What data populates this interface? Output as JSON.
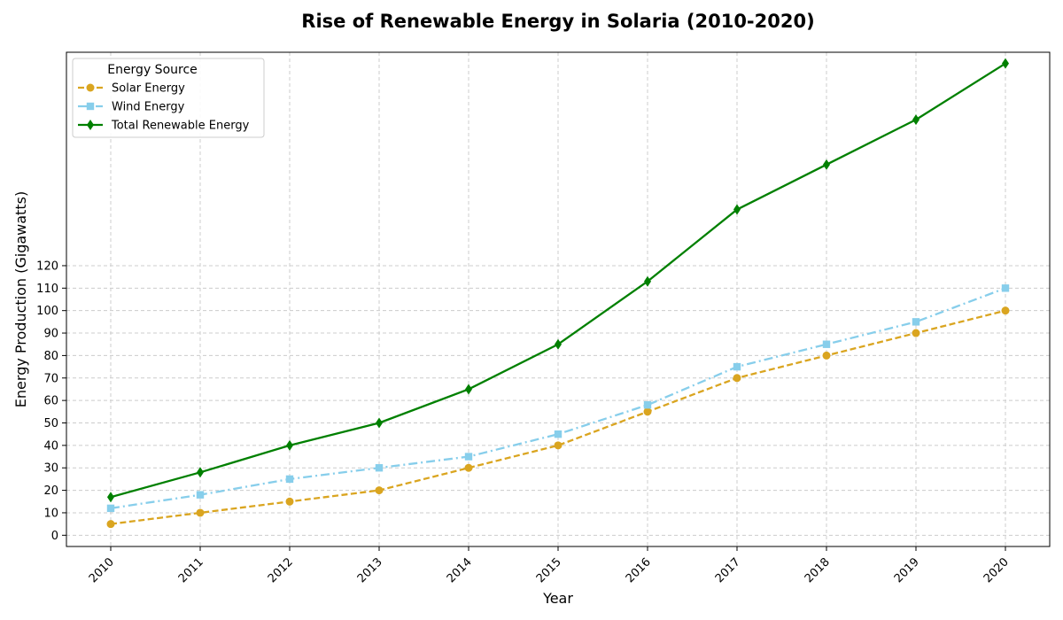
{
  "chart_data": {
    "type": "line",
    "title": "Rise of Renewable Energy in Solaria (2010-2020)",
    "xlabel": "Year",
    "ylabel": "Energy Production (Gigawatts)",
    "x": [
      "2010",
      "2011",
      "2012",
      "2013",
      "2014",
      "2015",
      "2016",
      "2017",
      "2018",
      "2019",
      "2020"
    ],
    "y_ticks": [
      0,
      10,
      20,
      30,
      40,
      50,
      60,
      70,
      80,
      90,
      100,
      110,
      120
    ],
    "ylim": [
      -5,
      215
    ],
    "grid": true,
    "legend": {
      "title": "Energy Source",
      "placement": "top-left"
    },
    "series": [
      {
        "name": "Solar Energy",
        "values": [
          5,
          10,
          15,
          20,
          30,
          40,
          55,
          70,
          80,
          90,
          100
        ],
        "color": "#DAA520",
        "line_style": "dashed",
        "marker": "circle"
      },
      {
        "name": "Wind Energy",
        "values": [
          12,
          18,
          25,
          30,
          35,
          45,
          58,
          75,
          85,
          95,
          110
        ],
        "color": "#87CEEB",
        "line_style": "dash-dot",
        "marker": "square"
      },
      {
        "name": "Total Renewable Energy",
        "values": [
          17,
          28,
          40,
          50,
          65,
          85,
          113,
          145,
          165,
          185,
          210
        ],
        "color": "#008000",
        "line_style": "solid",
        "marker": "diamond"
      }
    ]
  }
}
